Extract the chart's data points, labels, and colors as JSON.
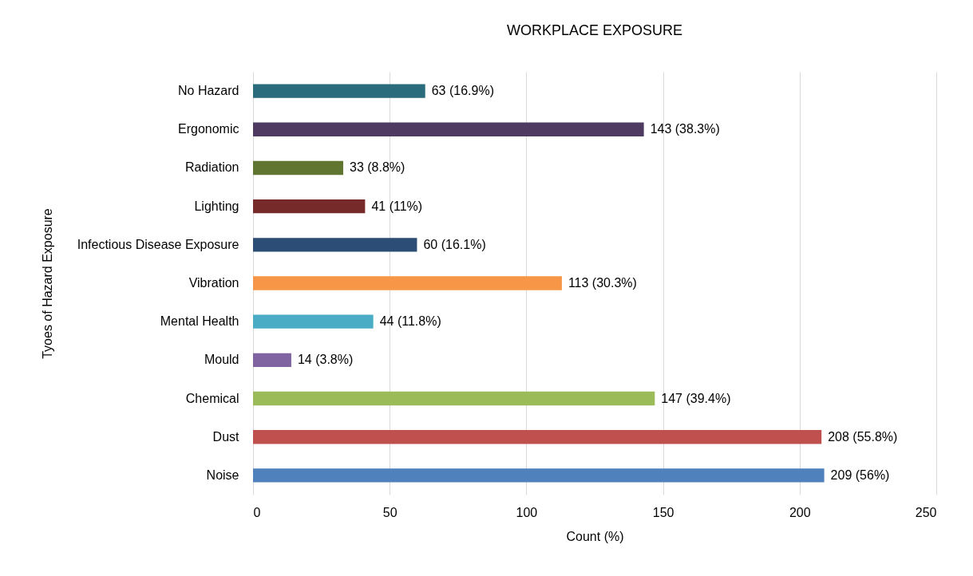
{
  "chart_data": {
    "type": "bar",
    "orientation": "horizontal",
    "title": "WORKPLACE EXPOSURE",
    "xlabel": "Count (%)",
    "ylabel": "Tyoes of Hazard Exposure",
    "categories": [
      "No Hazard",
      "Ergonomic",
      "Radiation",
      "Lighting",
      "Infectious Disease Exposure",
      "Vibration",
      "Mental Health",
      "Mould",
      "Chemical",
      "Dust",
      "Noise"
    ],
    "values": [
      63,
      143,
      33,
      41,
      60,
      113,
      44,
      14,
      147,
      208,
      209
    ],
    "value_labels": [
      "63 (16.9%)",
      "143 (38.3%)",
      "33 (8.8%)",
      "41 (11%)",
      "60 (16.1%)",
      "113 (30.3%)",
      "44 (11.8%)",
      "14 (3.8%)",
      "147 (39.4%)",
      "208 (55.8%)",
      "209 (56%)"
    ],
    "colors": [
      "#2a6b7c",
      "#4f3a62",
      "#5f7530",
      "#772a2a",
      "#2c4d75",
      "#f79646",
      "#4bacc6",
      "#8064a2",
      "#9bbb59",
      "#c0504d",
      "#4f81bd"
    ],
    "xlim": [
      0,
      250
    ],
    "xticks": [
      0,
      50,
      100,
      150,
      200,
      250
    ],
    "grid": "x"
  }
}
